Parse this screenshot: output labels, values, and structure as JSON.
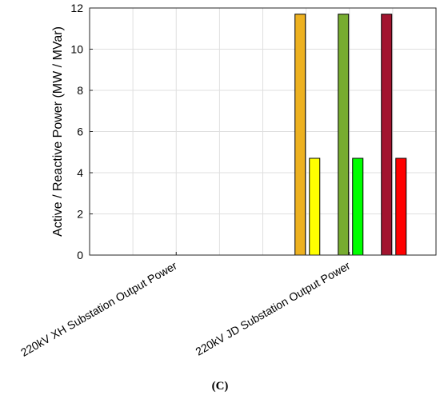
{
  "chart_data": {
    "type": "bar",
    "categories": [
      "220kV XH Substation Output Power",
      "220kV JD Substation Output Power"
    ],
    "ylabel": "Active / Reactive Power (MW / MVar)",
    "ylim": [
      0,
      12
    ],
    "yticks": [
      "0",
      "2",
      "4",
      "6",
      "8",
      "10",
      "12"
    ],
    "grid": true,
    "series": [
      {
        "color": "#EDB120",
        "values": [
          null,
          11.7
        ]
      },
      {
        "color": "#FFFF00",
        "values": [
          null,
          4.7
        ]
      },
      {
        "color": "#77AC30",
        "values": [
          null,
          11.7
        ]
      },
      {
        "color": "#00FF00",
        "values": [
          null,
          4.7
        ]
      },
      {
        "color": "#A2142F",
        "values": [
          null,
          11.7
        ]
      },
      {
        "color": "#FF0000",
        "values": [
          null,
          4.7
        ]
      }
    ]
  },
  "panel_label": "(C)"
}
